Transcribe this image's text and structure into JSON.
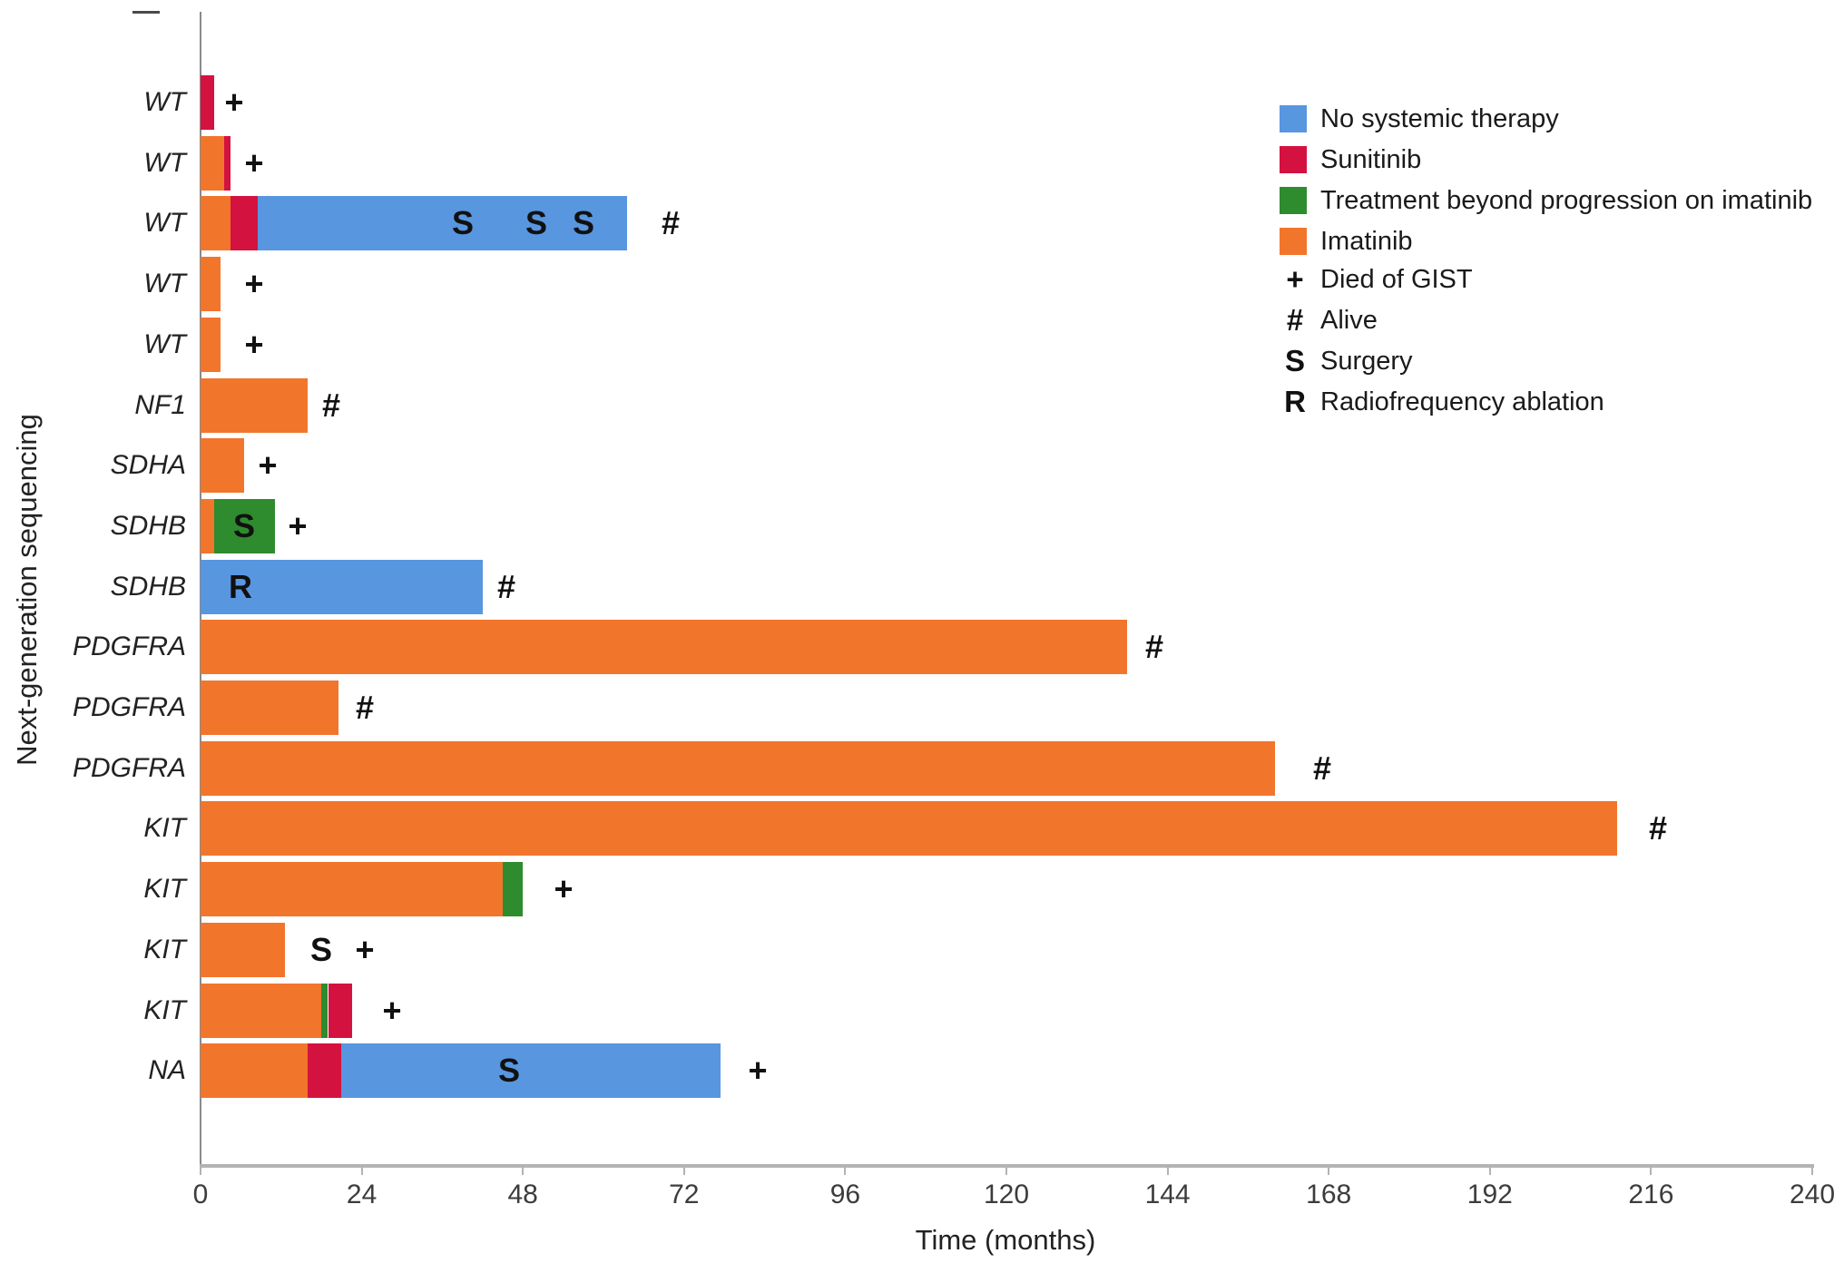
{
  "colors": {
    "no_systemic_therapy": "#5896e0",
    "sunitinib": "#d4123f",
    "treatment_beyond_progression": "#2e8b2e",
    "imatinib": "#f2752c",
    "axis_gray": "#b3b3b3"
  },
  "legend": {
    "therapies": [
      {
        "key": "no_systemic_therapy",
        "label": "No systemic therapy"
      },
      {
        "key": "sunitinib",
        "label": "Sunitinib"
      },
      {
        "key": "treatment_beyond_progression",
        "label": "Treatment beyond progression on imatinib"
      },
      {
        "key": "imatinib",
        "label": "Imatinib"
      }
    ],
    "markers": [
      {
        "symbol": "+",
        "label": "Died of GIST"
      },
      {
        "symbol": "#",
        "label": "Alive"
      },
      {
        "symbol": "S",
        "label": "Surgery"
      },
      {
        "symbol": "R",
        "label": "Radiofrequency ablation"
      }
    ]
  },
  "chart_data": {
    "type": "bar",
    "orientation": "horizontal",
    "stacked": true,
    "title": "",
    "xlabel": "Time (months)",
    "ylabel": "Next-generation sequencing",
    "xlim": [
      0,
      240
    ],
    "xticks": [
      0,
      24,
      48,
      72,
      96,
      120,
      144,
      168,
      192,
      216,
      240
    ],
    "grid": false,
    "legend_position": "upper right",
    "rows": [
      {
        "label": "WT",
        "segments": [
          {
            "therapy": "sunitinib",
            "start": 0,
            "end": 2
          }
        ],
        "markers": [
          {
            "symbol": "+",
            "at": 5
          }
        ]
      },
      {
        "label": "WT",
        "segments": [
          {
            "therapy": "imatinib",
            "start": 0,
            "end": 3.5
          },
          {
            "therapy": "sunitinib",
            "start": 3.5,
            "end": 4.5
          }
        ],
        "markers": [
          {
            "symbol": "+",
            "at": 8
          }
        ]
      },
      {
        "label": "WT",
        "segments": [
          {
            "therapy": "imatinib",
            "start": 0,
            "end": 4.5
          },
          {
            "therapy": "sunitinib",
            "start": 4.5,
            "end": 8.5
          },
          {
            "therapy": "no_systemic_therapy",
            "start": 8.5,
            "end": 63.5
          }
        ],
        "markers": [
          {
            "symbol": "S",
            "at": 39
          },
          {
            "symbol": "S",
            "at": 50
          },
          {
            "symbol": "S",
            "at": 57
          },
          {
            "symbol": "#",
            "at": 70
          }
        ]
      },
      {
        "label": "WT",
        "segments": [
          {
            "therapy": "imatinib",
            "start": 0,
            "end": 3
          }
        ],
        "markers": [
          {
            "symbol": "+",
            "at": 8
          }
        ]
      },
      {
        "label": "WT",
        "segments": [
          {
            "therapy": "imatinib",
            "start": 0,
            "end": 3
          }
        ],
        "markers": [
          {
            "symbol": "+",
            "at": 8
          }
        ]
      },
      {
        "label": "NF1",
        "segments": [
          {
            "therapy": "imatinib",
            "start": 0,
            "end": 16
          }
        ],
        "markers": [
          {
            "symbol": "#",
            "at": 19.5
          }
        ]
      },
      {
        "label": "SDHA",
        "segments": [
          {
            "therapy": "imatinib",
            "start": 0,
            "end": 6.5
          }
        ],
        "markers": [
          {
            "symbol": "+",
            "at": 10
          }
        ]
      },
      {
        "label": "SDHB",
        "segments": [
          {
            "therapy": "imatinib",
            "start": 0,
            "end": 2
          },
          {
            "therapy": "treatment_beyond_progression",
            "start": 2,
            "end": 11
          }
        ],
        "markers": [
          {
            "symbol": "S",
            "at": 6.5
          },
          {
            "symbol": "+",
            "at": 14.5
          }
        ]
      },
      {
        "label": "SDHB",
        "segments": [
          {
            "therapy": "no_systemic_therapy",
            "start": 0,
            "end": 42
          }
        ],
        "markers": [
          {
            "symbol": "R",
            "at": 6
          },
          {
            "symbol": "#",
            "at": 45.5
          }
        ]
      },
      {
        "label": "PDGFRA",
        "segments": [
          {
            "therapy": "imatinib",
            "start": 0,
            "end": 138
          }
        ],
        "markers": [
          {
            "symbol": "#",
            "at": 142
          }
        ]
      },
      {
        "label": "PDGFRA",
        "segments": [
          {
            "therapy": "imatinib",
            "start": 0,
            "end": 20.5
          }
        ],
        "markers": [
          {
            "symbol": "#",
            "at": 24.5
          }
        ]
      },
      {
        "label": "PDGFRA",
        "segments": [
          {
            "therapy": "imatinib",
            "start": 0,
            "end": 160
          }
        ],
        "markers": [
          {
            "symbol": "#",
            "at": 167
          }
        ]
      },
      {
        "label": "KIT",
        "segments": [
          {
            "therapy": "imatinib",
            "start": 0,
            "end": 211
          }
        ],
        "markers": [
          {
            "symbol": "#",
            "at": 217
          }
        ]
      },
      {
        "label": "KIT",
        "segments": [
          {
            "therapy": "imatinib",
            "start": 0,
            "end": 45
          },
          {
            "therapy": "treatment_beyond_progression",
            "start": 45,
            "end": 48
          }
        ],
        "markers": [
          {
            "symbol": "+",
            "at": 54
          }
        ]
      },
      {
        "label": "KIT",
        "segments": [
          {
            "therapy": "imatinib",
            "start": 0,
            "end": 12.5
          }
        ],
        "markers": [
          {
            "symbol": "S",
            "at": 18
          },
          {
            "symbol": "+",
            "at": 24.5
          }
        ]
      },
      {
        "label": "KIT",
        "segments": [
          {
            "therapy": "imatinib",
            "start": 0,
            "end": 18
          },
          {
            "therapy": "treatment_beyond_progression",
            "start": 18,
            "end": 19
          },
          {
            "therapy": "sunitinib",
            "start": 19,
            "end": 22.5
          }
        ],
        "markers": [
          {
            "symbol": "+",
            "at": 28.5
          }
        ]
      },
      {
        "label": "NA",
        "segments": [
          {
            "therapy": "imatinib",
            "start": 0,
            "end": 16
          },
          {
            "therapy": "sunitinib",
            "start": 16,
            "end": 21
          },
          {
            "therapy": "no_systemic_therapy",
            "start": 21,
            "end": 77.5
          }
        ],
        "markers": [
          {
            "symbol": "S",
            "at": 46
          },
          {
            "symbol": "+",
            "at": 83
          }
        ]
      }
    ]
  }
}
